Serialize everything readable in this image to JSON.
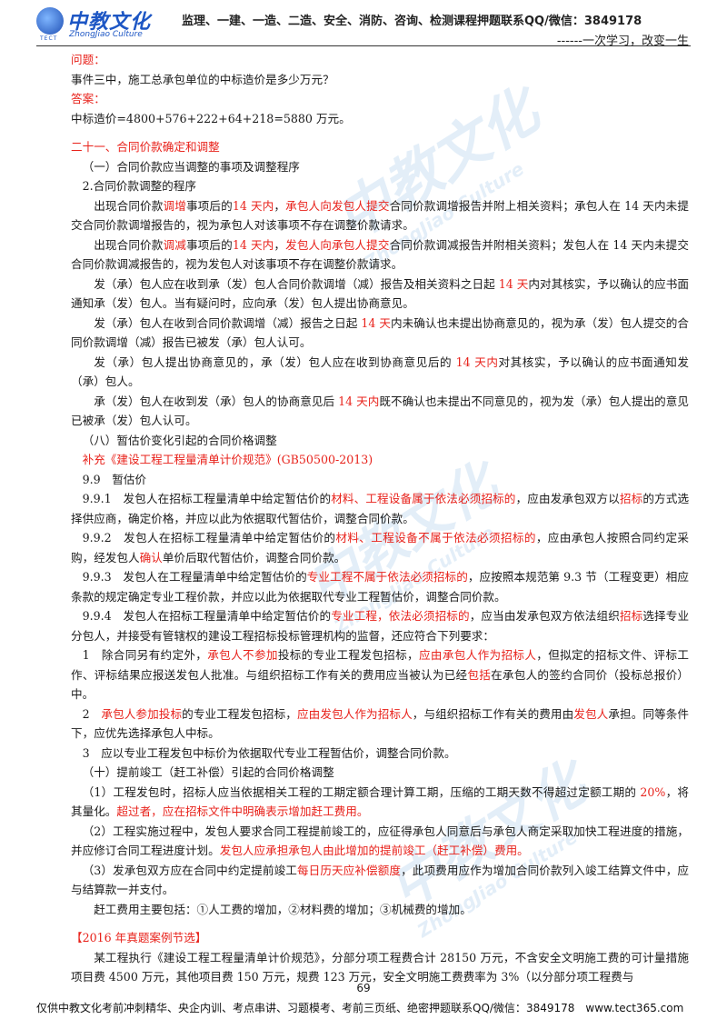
{
  "header": {
    "logo_text": "中教文化",
    "logo_subtext": "ZhongJiao Culture",
    "logo_tect": "TECT",
    "title": "监理、一建、一造、二造、安全、消防、咨询、检测课程押题联系QQ/微信：3849178",
    "slogan": "------一次学习，改变一生"
  },
  "content": {
    "question_label": "问题：",
    "question_text": "事件三中，施工总承包单位的中标造价是多少万元？",
    "answer_label": "答案：",
    "answer_text": "中标造价=4800+576+222+64+218=5880 万元。",
    "section_21_title": "二十一、合同价款确定和调整",
    "sub_1": "（一）合同价款应当调整的事项及调整程序",
    "sub_1_2": "2.合同价款调整的程序",
    "p1_a": "出现合同价款",
    "p1_b": "调增",
    "p1_c": "事项后的",
    "p1_d": "14 天内",
    "p1_e": "，",
    "p1_f": "承包人向发包人提交",
    "p1_g": "合同价款调增报告并附上相关资料；承包人在 14 天内未提交合同价款调增报告的，视为承包人对该事项不存在调整价款请求。",
    "p2_a": "出现合同价款",
    "p2_b": "调减",
    "p2_c": "事项后的",
    "p2_d": "14 天内",
    "p2_e": "，",
    "p2_f": "发包人向承包人提交",
    "p2_g": "合同价款调减报告并附相关资料；发包人在 14 天内未提交合同价款调减报告的，视为发包人对该事项不存在调整价款请求。",
    "p3_a": "发（承）包人应在收到承（发）包人合同价款调增（减）报告及相关资料之日起",
    "p3_b": " 14 天",
    "p3_c": "内对其核实，予以确认的应书面通知承（发）包人。当有疑问时，应向承（发）包人提出协商意见。",
    "p4_a": "发（承）包人在收到合同价款调增（减）报告之日起",
    "p4_b": " 14 天",
    "p4_c": "内未确认也未提出协商意见的，视为承（发）包人提交的合同价款调增（减）报告已被发（承）包人认可。",
    "p5_a": "发（承）包人提出协商意见的，承（发）包人应在收到协商意见后的",
    "p5_b": " 14 天内",
    "p5_c": "对其核实，予以确认的应书面通知发（承）包人。",
    "p6_a": "承（发）包人在收到发（承）包人的协商意见后",
    "p6_b": " 14 天内",
    "p6_c": "既不确认也未提出不同意见的，视为发（承）包人提出的意见已被承（发）包人认可。",
    "sub_8": "（八）暂估价变化引起的合同价格调整",
    "supplement": "补充《建设工程工程量清单计价规范》(GB50500-2013)",
    "s99": "9.9　暂估价",
    "s991_a": "9.9.1　发包人在招标工程量清单中给定暂估价的",
    "s991_b": "材料、工程设备属于依法必须招标的",
    "s991_c": "，应由发承包双方以",
    "s991_d": "招标",
    "s991_e": "的方式选择供应商，确定价格，并应以此为依据取代暂估价，调整合同价款。",
    "s992_a": "9.9.2　发包人在招标工程量清单中给定暂估价的",
    "s992_b": "材料、工程设备不属于依法必须招标的",
    "s992_c": "，应由承包人按照合同约定采购，经发包人",
    "s992_d": "确认",
    "s992_e": "单价后取代暂估价，调整合同价款。",
    "s993_a": "9.9.3　发包人在工程量清单中给定暂估价的",
    "s993_b": "专业工程不属于依法必须招标的",
    "s993_c": "，应按照本规范第 9.3 节（工程变更）相应条款的规定确定专业工程价款，并应以此为依据取代专业工程暂估价，调整合同价款。",
    "s994_a": "9.9.4　发包人在招标工程量清单中给定暂估价的",
    "s994_b": "专业工程，依法必须招标的",
    "s994_c": "，应当由发承包双方依法组织",
    "s994_d": "招标",
    "s994_e": "选择专业分包人，并接受有管辖权的建设工程招标投标管理机构的监督，还应符合下列要求：",
    "i1_a": "1　除合同另有约定外，",
    "i1_b": "承包人不参加",
    "i1_c": "投标的专业工程发包招标，",
    "i1_d": "应由承包人作为招标人",
    "i1_e": "，但拟定的招标文件、评标工作、评标结果应报送发包人批准。与组织招标工作有关的费用应当被认为已经",
    "i1_f": "包括",
    "i1_g": "在承包人的签约合同价（投标总报价）中。",
    "i2_a": "2　",
    "i2_b": "承包人参加投标",
    "i2_c": "的专业工程发包招标，",
    "i2_d": "应由发包人作为招标人",
    "i2_e": "，与组织招标工作有关的费用由",
    "i2_f": "发包人",
    "i2_g": "承担。同等条件下，应优先选择承包人中标。",
    "i3": "3　应以专业工程发包中标价为依据取代专业工程暂估价，调整合同价款。",
    "sub_10": "（十）提前竣工（赶工补偿）引起的合同价格调整",
    "t1_a": "（1）工程发包时，招标人应当依据相关工程的工期定额合理计算工期，压缩的工期天数不得超过定额工期的 ",
    "t1_b": "20%",
    "t1_c": "，将其量化。",
    "t1_d": "超过者，应在招标文件中明确表示增加赶工费用。",
    "t2_a": "（2）工程实施过程中，发包人要求合同工程提前竣工的，应征得承包人同意后与承包人商定采取加快工程进度的措施，并应修订合同工程进度计划。",
    "t2_b": "发包人应承担承包人由此增加的提前竣工（赶工补偿）费用。",
    "t3_a": "（3）发承包双方应在合同中约定提前竣工",
    "t3_b": "每日历天应补偿额度",
    "t3_c": "，此项费用应作为增加合同价款列入竣工结算文件中，应与结算款一并支付。",
    "t4": "赶工费用主要包括：①人工费的增加，②材料费的增加；③机械费的增加。",
    "case_title": "【2016 年真题案例节选】",
    "case_text": "某工程执行《建设工程工程量清单计价规范》，分部分项工程费合计 28150 万元，不含安全文明施工费的可计量措施项目费 4500 万元，其他项目费 150 万元，规费 123 万元，安全文明施工费费率为 3%（以分部分项工程费与"
  },
  "page_number": "69",
  "footer": "仅供中教文化考前冲刺精华、央企内训、考点串讲、习题模考、考前三页纸、绝密押题联系QQ/微信：3849178　www.tect365.com",
  "watermark": "中教文化",
  "watermark_sub": "ZhongJiao Culture",
  "colors": {
    "accent_red": "#e8221b",
    "brand_blue": "#1d56c4"
  }
}
